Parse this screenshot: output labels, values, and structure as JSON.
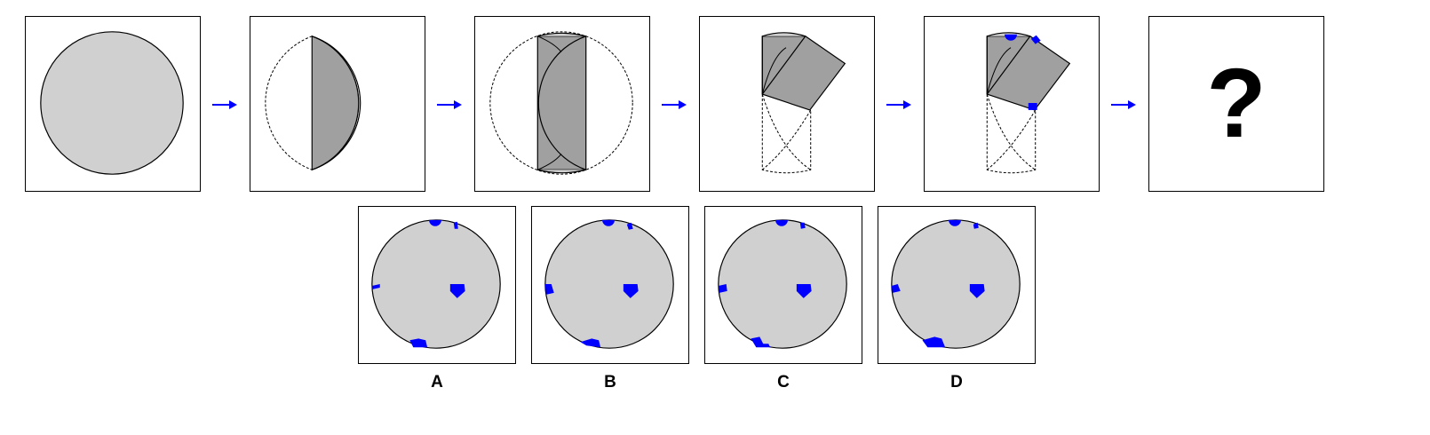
{
  "puzzle": {
    "question_mark": "?",
    "options": [
      {
        "label": "A"
      },
      {
        "label": "B"
      },
      {
        "label": "C"
      },
      {
        "label": "D"
      }
    ]
  },
  "colors": {
    "paper": "#d0d0d0",
    "paper_folded": "#a0a0a0",
    "hole": "#0000ff",
    "arrow": "#0000ff",
    "outline": "#000000"
  }
}
